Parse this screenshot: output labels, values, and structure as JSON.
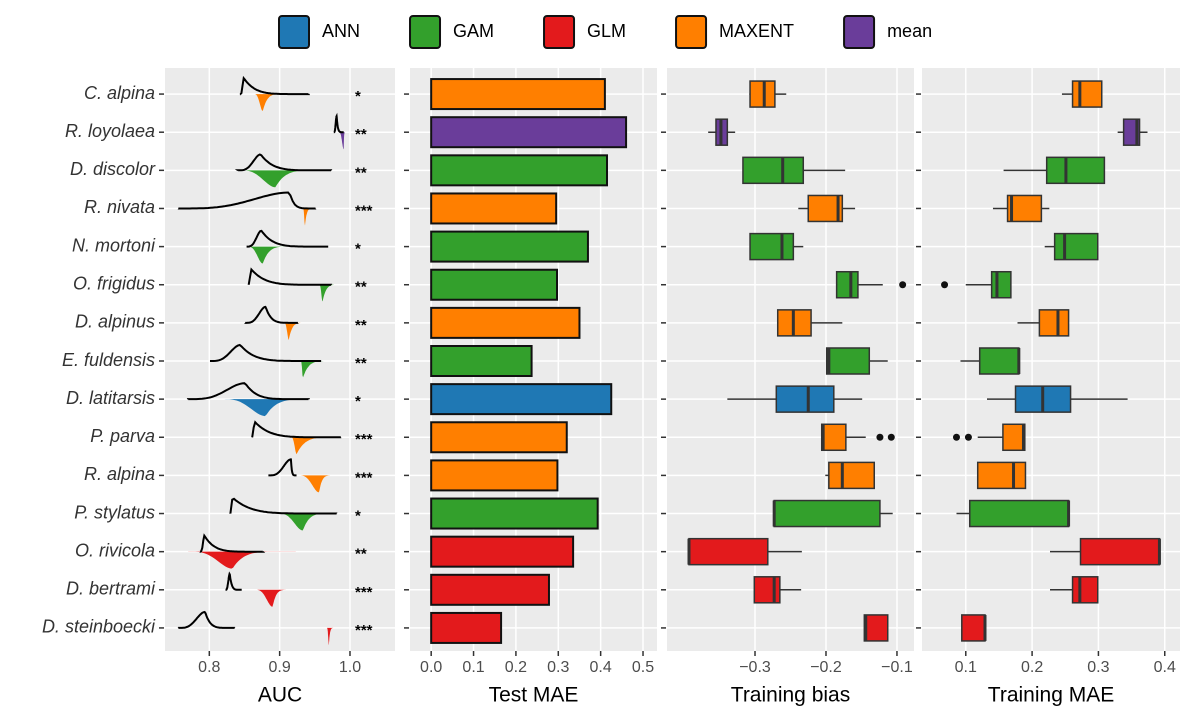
{
  "legend": {
    "position": "top",
    "items": [
      {
        "name": "ANN",
        "color": "#1f78b4"
      },
      {
        "name": "GAM",
        "color": "#33a02c"
      },
      {
        "name": "GLM",
        "color": "#e31a1c"
      },
      {
        "name": "MAXENT",
        "color": "#ff7f00"
      },
      {
        "name": "mean",
        "color": "#6a3d9a"
      }
    ]
  },
  "chart_data": [
    {
      "type": "ridgeline",
      "x_label": "AUC",
      "categories": [
        "C. alpina",
        "R. loyolaea",
        "D. discolor",
        "R. nivata",
        "N. mortoni",
        "O. frigidus",
        "D. alpinus",
        "E. fuldensis",
        "D. latitarsis",
        "P. parva",
        "R. alpina",
        "P. stylatus",
        "O. rivicola",
        "D. bertrami",
        "D. steinboecki"
      ],
      "best_model": [
        "MAXENT",
        "mean",
        "GAM",
        "MAXENT",
        "GAM",
        "GAM",
        "MAXENT",
        "GAM",
        "ANN",
        "MAXENT",
        "MAXENT",
        "GAM",
        "GLM",
        "GLM",
        "GLM"
      ],
      "null_auc": [
        [
          0.844,
          0.849,
          0.941
        ],
        [
          0.977,
          0.981,
          0.991
        ],
        [
          0.841,
          0.873,
          0.973
        ],
        [
          0.756,
          0.914,
          0.951
        ],
        [
          0.853,
          0.874,
          0.969
        ],
        [
          0.856,
          0.859,
          0.973
        ],
        [
          0.851,
          0.88,
          0.926
        ],
        [
          0.801,
          0.844,
          0.959
        ],
        [
          0.77,
          0.851,
          0.941
        ],
        [
          0.861,
          0.864,
          0.987
        ],
        [
          0.884,
          0.916,
          0.924
        ],
        [
          0.83,
          0.833,
          0.981
        ],
        [
          0.787,
          0.793,
          0.876
        ],
        [
          0.823,
          0.829,
          0.846
        ],
        [
          0.756,
          0.794,
          0.836
        ]
      ],
      "model_auc": [
        [
          0.863,
          0.876,
          0.913
        ],
        [
          0.984,
          0.991,
          0.994
        ],
        [
          0.841,
          0.894,
          0.973
        ],
        [
          0.933,
          0.936,
          0.951
        ],
        [
          0.853,
          0.876,
          0.926
        ],
        [
          0.956,
          0.961,
          0.99
        ],
        [
          0.906,
          0.913,
          0.941
        ],
        [
          0.93,
          0.933,
          0.98
        ],
        [
          0.816,
          0.88,
          0.967
        ],
        [
          0.916,
          0.924,
          0.994
        ],
        [
          0.926,
          0.956,
          0.981
        ],
        [
          0.896,
          0.933,
          0.984
        ],
        [
          0.77,
          0.833,
          0.923
        ],
        [
          0.864,
          0.89,
          0.919
        ],
        [
          0.967,
          0.97,
          0.979
        ]
      ],
      "significance": [
        "*",
        "**",
        "**",
        "***",
        "*",
        "**",
        "**",
        "**",
        "*",
        "***",
        "***",
        "*",
        "**",
        "***",
        "***"
      ],
      "null_color": "#000000",
      "xlim": [
        0.737,
        1.064
      ],
      "xticks": [
        0.8,
        0.9,
        {
          "value": 1,
          "label": "1.0"
        }
      ],
      "grid": true
    },
    {
      "type": "bar",
      "orientation": "horizontal",
      "x_label": "Test MAE",
      "values": [
        0.41,
        0.46,
        0.415,
        0.295,
        0.37,
        0.297,
        0.35,
        0.237,
        0.425,
        0.32,
        0.298,
        0.393,
        0.335,
        0.278,
        0.165
      ],
      "xlim": [
        -0.05,
        0.533
      ],
      "xticks": [
        {
          "value": 0,
          "label": "0.0"
        },
        0.1,
        0.2,
        0.3,
        0.4,
        0.5
      ],
      "grid": true
    },
    {
      "type": "box",
      "x_label": "Training bias",
      "values": [
        [
          -0.308,
          -0.307,
          -0.287,
          -0.272,
          -0.256
        ],
        [
          -0.366,
          -0.355,
          -0.348,
          -0.339,
          -0.328
        ],
        [
          -0.317,
          -0.317,
          -0.261,
          -0.232,
          -0.173
        ],
        [
          -0.239,
          -0.225,
          -0.183,
          -0.177,
          -0.159
        ],
        [
          -0.307,
          -0.307,
          -0.262,
          -0.246,
          -0.232
        ],
        [
          -0.185,
          -0.185,
          -0.165,
          -0.155,
          -0.12
        ],
        [
          -0.268,
          -0.268,
          -0.246,
          -0.221,
          -0.177
        ],
        [
          -0.199,
          -0.199,
          -0.196,
          -0.139,
          -0.113
        ],
        [
          -0.339,
          -0.27,
          -0.225,
          -0.189,
          -0.149
        ],
        [
          -0.206,
          -0.206,
          -0.204,
          -0.172,
          -0.144
        ],
        [
          -0.201,
          -0.196,
          -0.177,
          -0.132,
          -0.132
        ],
        [
          -0.273,
          -0.273,
          -0.273,
          -0.124,
          -0.106
        ],
        [
          -0.393,
          -0.393,
          -0.393,
          -0.282,
          -0.234
        ],
        [
          -0.301,
          -0.301,
          -0.273,
          -0.265,
          -0.235
        ],
        [
          -0.146,
          -0.146,
          -0.144,
          -0.113,
          -0.113
        ]
      ],
      "outliers": [
        [],
        [],
        [],
        [],
        [],
        [
          -0.092
        ],
        [],
        [],
        [],
        [
          -0.124,
          -0.108
        ],
        [],
        [],
        [],
        [],
        []
      ],
      "xlim": [
        -0.424,
        -0.076
      ],
      "xticks": [
        {
          "value": -0.3,
          "label": "−0.3"
        },
        {
          "value": -0.2,
          "label": "−0.2"
        },
        {
          "value": -0.1,
          "label": "−0.1"
        }
      ],
      "grid": true
    },
    {
      "type": "box",
      "x_label": "Training MAE",
      "values": [
        [
          0.245,
          0.261,
          0.272,
          0.305,
          0.305
        ],
        [
          0.329,
          0.338,
          0.358,
          0.362,
          0.374
        ],
        [
          0.157,
          0.222,
          0.251,
          0.309,
          0.309
        ],
        [
          0.141,
          0.163,
          0.169,
          0.214,
          0.226
        ],
        [
          0.219,
          0.234,
          0.249,
          0.299,
          0.299
        ],
        [
          0.1,
          0.139,
          0.147,
          0.168,
          0.168
        ],
        [
          0.178,
          0.211,
          0.239,
          0.255,
          0.255
        ],
        [
          0.092,
          0.121,
          0.18,
          0.18,
          0.18
        ],
        [
          0.132,
          0.175,
          0.216,
          0.258,
          0.344
        ],
        [
          0.118,
          0.156,
          0.187,
          0.189,
          0.189
        ],
        [
          0.118,
          0.118,
          0.172,
          0.19,
          0.19
        ],
        [
          0.086,
          0.106,
          0.255,
          0.255,
          0.255
        ],
        [
          0.227,
          0.273,
          0.392,
          0.392,
          0.392
        ],
        [
          0.227,
          0.261,
          0.272,
          0.299,
          0.299
        ],
        [
          0.094,
          0.094,
          0.129,
          0.129,
          0.129
        ]
      ],
      "outliers": [
        [],
        [],
        [],
        [],
        [],
        [
          0.068
        ],
        [],
        [],
        [],
        [
          0.086,
          0.104
        ],
        [],
        [],
        [],
        [],
        []
      ],
      "xlim": [
        0.034,
        0.423
      ],
      "xticks": [
        0.1,
        0.2,
        0.3,
        0.4
      ],
      "grid": true
    }
  ]
}
